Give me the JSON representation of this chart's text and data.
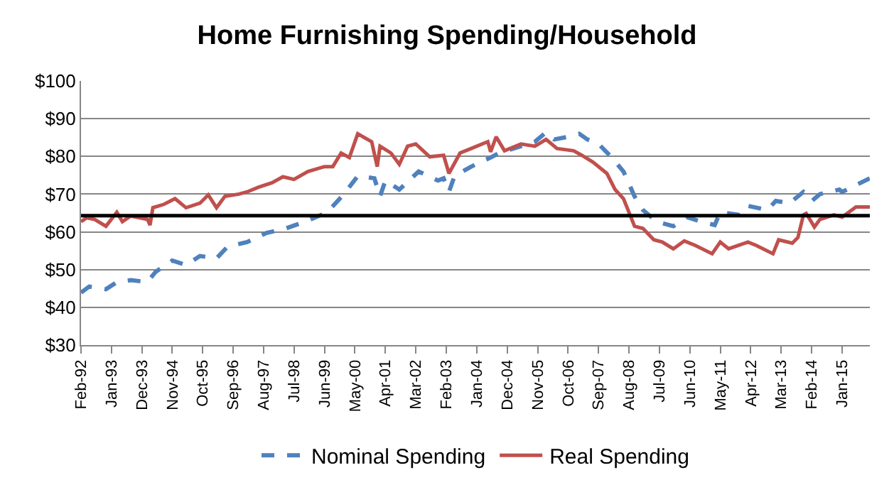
{
  "chart_data": {
    "type": "line",
    "title": "Home Furnishing Spending/Household",
    "xlim": [
      "1992-02",
      "2015-11"
    ],
    "xticks": [
      {
        "value": "1992-02",
        "label": "Feb-92"
      },
      {
        "value": "1993-01",
        "label": "Jan-93"
      },
      {
        "value": "1993-12",
        "label": "Dec-93"
      },
      {
        "value": "1994-11",
        "label": "Nov-94"
      },
      {
        "value": "1995-10",
        "label": "Oct-95"
      },
      {
        "value": "1996-09",
        "label": "Sep-96"
      },
      {
        "value": "1997-08",
        "label": "Aug-97"
      },
      {
        "value": "1998-07",
        "label": "Jul-98"
      },
      {
        "value": "1999-06",
        "label": "Jun-99"
      },
      {
        "value": "2000-05",
        "label": "May-00"
      },
      {
        "value": "2001-04",
        "label": "Apr-01"
      },
      {
        "value": "2002-03",
        "label": "Mar-02"
      },
      {
        "value": "2003-02",
        "label": "Feb-03"
      },
      {
        "value": "2004-01",
        "label": "Jan-04"
      },
      {
        "value": "2004-12",
        "label": "Dec-04"
      },
      {
        "value": "2005-11",
        "label": "Nov-05"
      },
      {
        "value": "2006-10",
        "label": "Oct-06"
      },
      {
        "value": "2007-09",
        "label": "Sep-07"
      },
      {
        "value": "2008-08",
        "label": "Aug-08"
      },
      {
        "value": "2009-07",
        "label": "Jul-09"
      },
      {
        "value": "2010-06",
        "label": "Jun-10"
      },
      {
        "value": "2011-05",
        "label": "May-11"
      },
      {
        "value": "2012-04",
        "label": "Apr-12"
      },
      {
        "value": "2013-03",
        "label": "Mar-13"
      },
      {
        "value": "2014-02",
        "label": "Feb-14"
      },
      {
        "value": "2015-01",
        "label": "Jan-15"
      }
    ],
    "ylim": [
      30,
      100
    ],
    "yticks": [
      {
        "value": 30,
        "label": "$30"
      },
      {
        "value": 40,
        "label": "$40"
      },
      {
        "value": 50,
        "label": "$50"
      },
      {
        "value": 60,
        "label": "$60"
      },
      {
        "value": 70,
        "label": "$70"
      },
      {
        "value": 80,
        "label": "$80"
      },
      {
        "value": 90,
        "label": "$90"
      },
      {
        "value": 100,
        "label": "$100"
      }
    ],
    "grid": "y",
    "legend": "bottom",
    "marker": "none",
    "ref_lines": [
      {
        "axis": "y",
        "value": 64.3,
        "label": null,
        "color": "#000000"
      }
    ],
    "series": [
      {
        "name": "Nominal Spending",
        "color": "#4f81bd",
        "line_style": "dashed",
        "x": [
          "1992-02",
          "1992-05",
          "1992-11",
          "1993-03",
          "1993-08",
          "1994-02",
          "1994-05",
          "1994-11",
          "1995-04",
          "1995-09",
          "1996-03",
          "1996-07",
          "1997-02",
          "1997-09",
          "1998-04",
          "1998-11",
          "1999-07",
          "2000-01",
          "2000-06",
          "2000-12",
          "2001-02",
          "2001-04",
          "2001-09",
          "2002-04",
          "2002-11",
          "2003-01",
          "2003-03",
          "2003-05",
          "2003-11",
          "2004-06",
          "2004-09",
          "2005-05",
          "2005-10",
          "2006-02",
          "2006-05",
          "2006-10",
          "2007-02",
          "2007-05",
          "2007-09",
          "2008-01",
          "2008-06",
          "2008-10",
          "2009-01",
          "2009-06",
          "2009-12",
          "2010-05",
          "2010-10",
          "2011-03",
          "2011-05",
          "2011-12",
          "2012-03",
          "2012-10",
          "2013-01",
          "2013-06",
          "2013-11",
          "2014-02",
          "2014-05",
          "2014-12",
          "2015-01",
          "2015-11"
        ],
        "values": [
          43.9,
          45.5,
          44.8,
          46.7,
          47.2,
          46.7,
          49.4,
          52.4,
          51.2,
          53.6,
          53,
          56.1,
          57.3,
          59.7,
          60.9,
          62.7,
          65.2,
          70,
          74.8,
          74.2,
          69.4,
          73.6,
          71.2,
          76,
          73.6,
          74.2,
          70.6,
          74.8,
          77.3,
          79.7,
          80.9,
          82.7,
          83.9,
          86.4,
          84.5,
          85.2,
          86,
          84.5,
          83.3,
          80.3,
          76,
          69.4,
          65.8,
          62.7,
          61.5,
          63.9,
          62.7,
          61.8,
          65.2,
          64.5,
          66.9,
          65.8,
          68.2,
          67.6,
          70.6,
          68.2,
          70,
          71.2,
          70.6,
          74.2
        ]
      },
      {
        "name": "Real Spending",
        "color": "#c0504d",
        "line_style": "solid",
        "x": [
          "1992-02",
          "1992-04",
          "1992-07",
          "1992-11",
          "1993-03",
          "1993-05",
          "1993-08",
          "1994-02",
          "1994-03",
          "1994-04",
          "1994-08",
          "1994-12",
          "1995-04",
          "1995-09",
          "1995-12",
          "1996-03",
          "1996-06",
          "1996-11",
          "1997-02",
          "1997-06",
          "1997-11",
          "1998-03",
          "1998-07",
          "1998-12",
          "1999-06",
          "1999-09",
          "1999-12",
          "2000-03",
          "2000-06",
          "2000-11",
          "2001-01",
          "2001-02",
          "2001-06",
          "2001-09",
          "2001-12",
          "2002-03",
          "2002-08",
          "2003-01",
          "2003-03",
          "2003-07",
          "2003-11",
          "2004-05",
          "2004-06",
          "2004-08",
          "2004-11",
          "2005-05",
          "2005-10",
          "2006-02",
          "2006-06",
          "2006-12",
          "2007-03",
          "2007-07",
          "2007-12",
          "2008-03",
          "2008-06",
          "2008-10",
          "2009-01",
          "2009-05",
          "2009-08",
          "2009-12",
          "2010-04",
          "2010-08",
          "2011-02",
          "2011-05",
          "2011-08",
          "2012-03",
          "2012-06",
          "2012-12",
          "2013-02",
          "2013-07",
          "2013-09",
          "2013-11",
          "2013-12",
          "2014-03",
          "2014-05",
          "2014-10",
          "2015-01",
          "2015-06",
          "2015-11"
        ],
        "values": [
          62.7,
          63.7,
          63.3,
          61.5,
          65.2,
          62.7,
          64.2,
          63.3,
          61.8,
          66.4,
          67.3,
          68.8,
          66.4,
          67.6,
          69.8,
          66.4,
          69.4,
          70,
          70.6,
          71.8,
          73,
          74.6,
          73.9,
          76,
          77.3,
          77.3,
          80.9,
          79.7,
          86,
          83.9,
          77.3,
          82.7,
          80.9,
          77.9,
          82.7,
          83.3,
          79.9,
          80.3,
          75.5,
          80.9,
          82.1,
          83.9,
          81.2,
          85.2,
          81.5,
          83.3,
          82.7,
          84.5,
          82.1,
          81.5,
          80.3,
          78.5,
          75.5,
          71.2,
          68.8,
          61.5,
          60.9,
          57.9,
          57.3,
          55.5,
          57.6,
          56.4,
          54.2,
          57.3,
          55.5,
          57.3,
          56.4,
          54.2,
          57.9,
          57,
          58.5,
          64.5,
          64.9,
          61.3,
          63.3,
          64.5,
          63.9,
          66.6,
          66.6
        ]
      }
    ]
  }
}
